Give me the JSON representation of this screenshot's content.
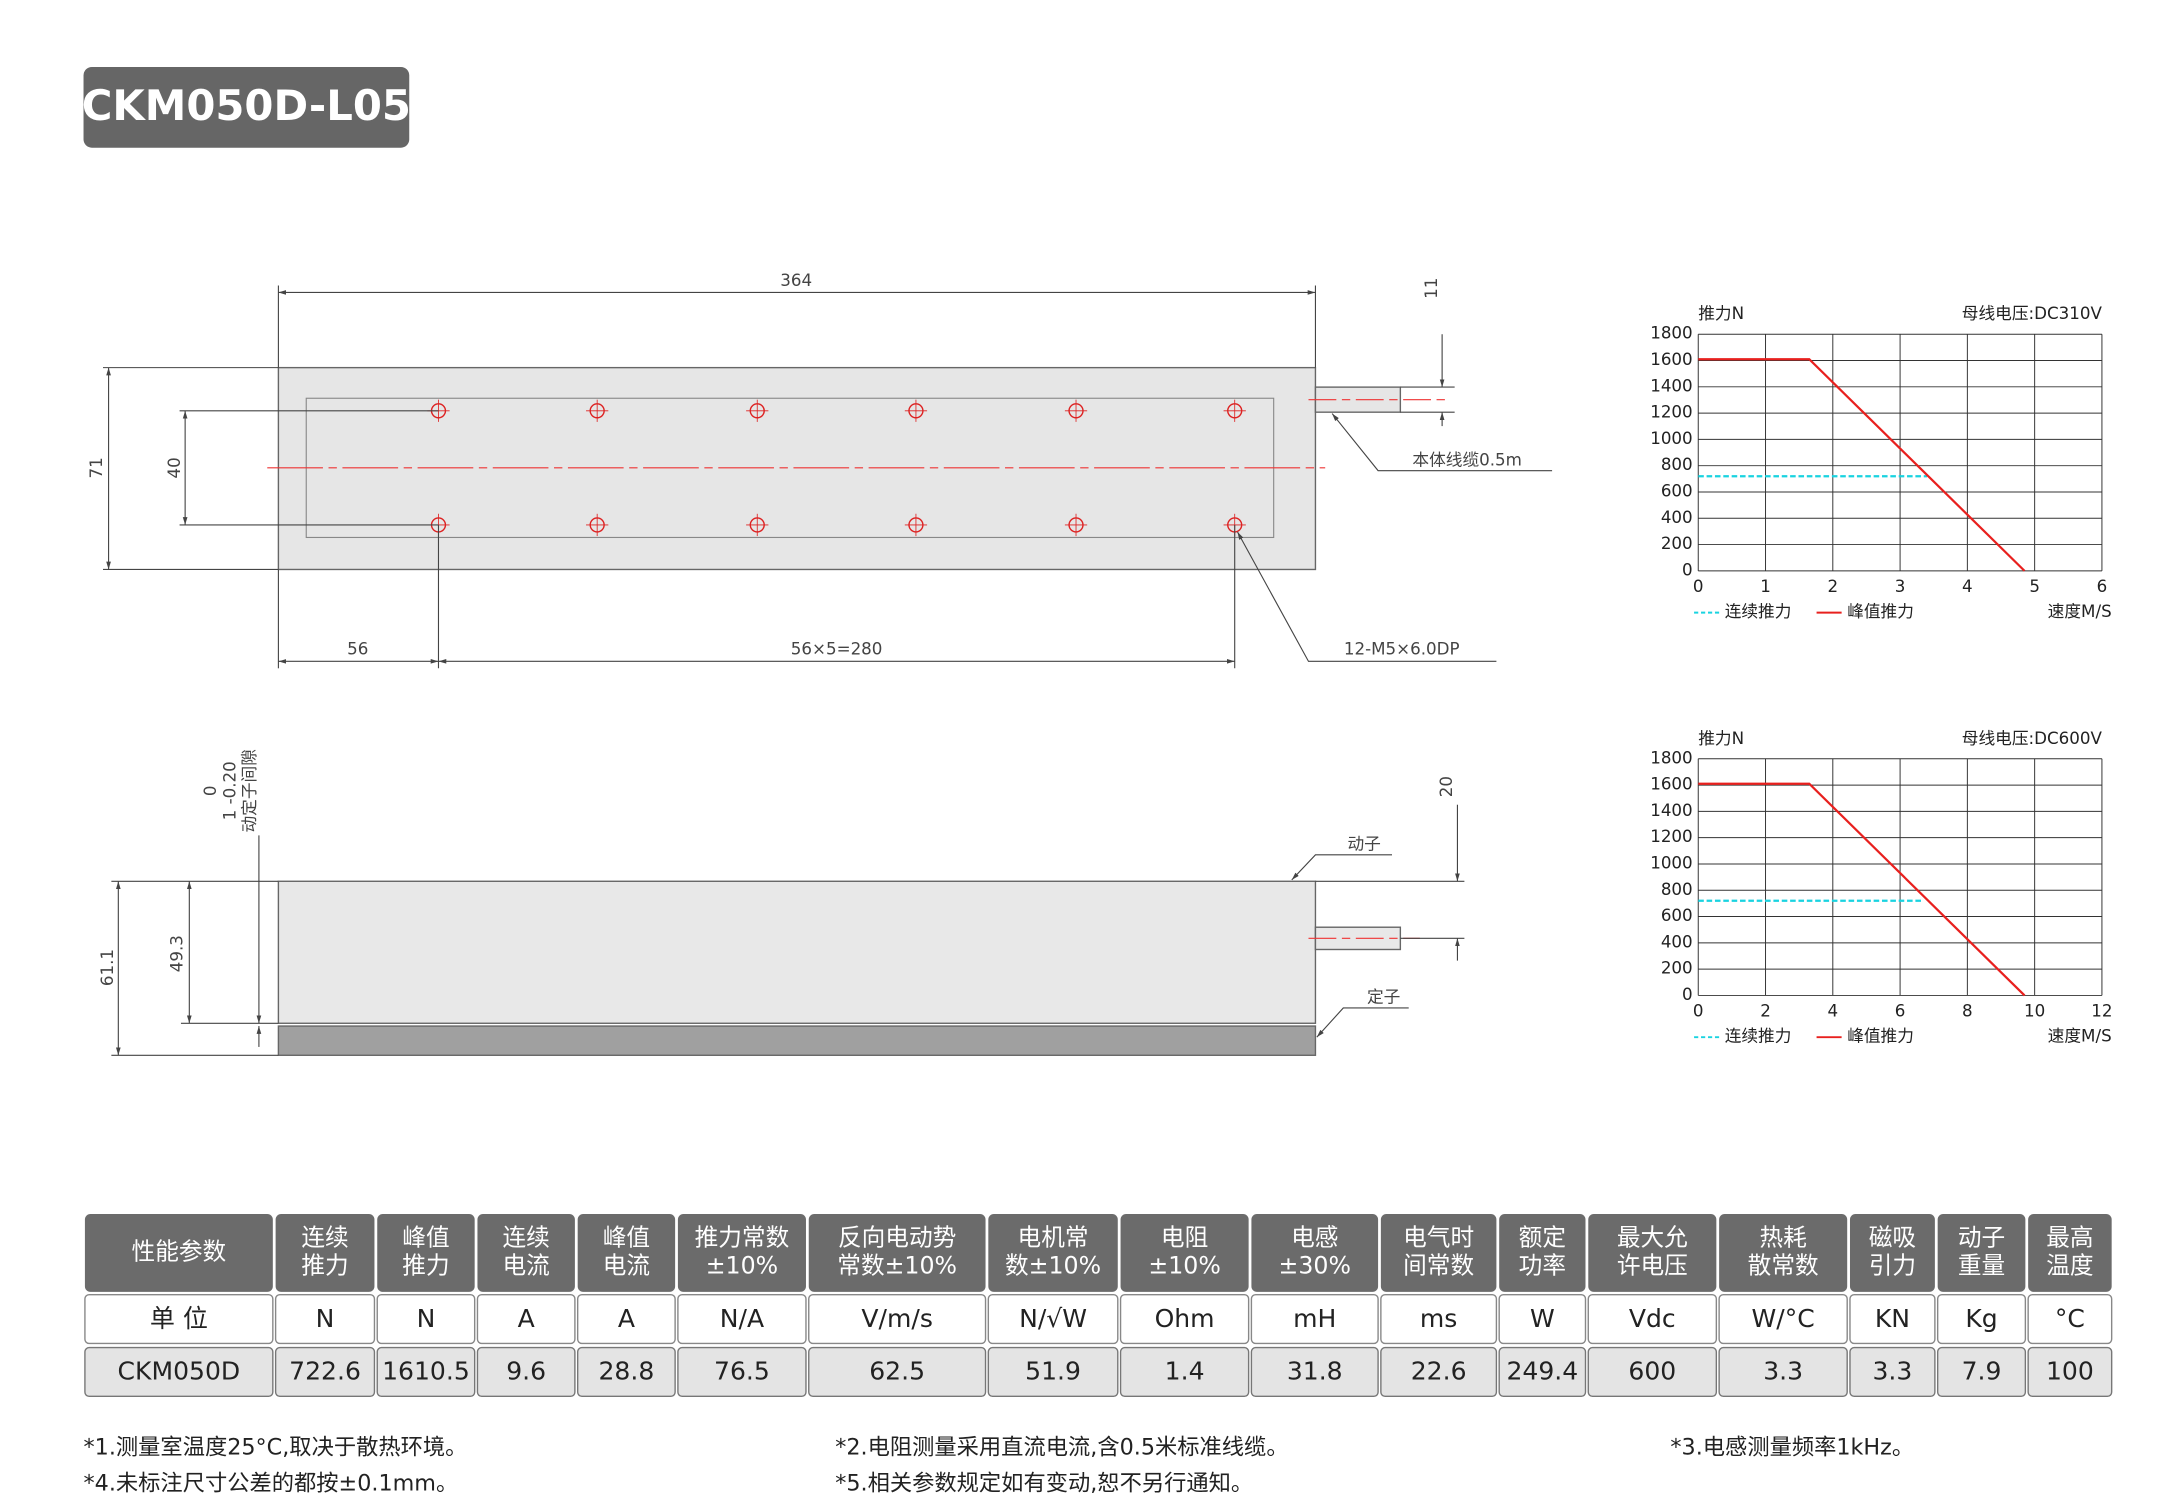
{
  "header": {
    "title": "CKM050D-L05"
  },
  "top_view": {
    "overall_length": "364",
    "cable_offset": "11",
    "height": "71",
    "hole_spacing": "40",
    "first_hole": "56",
    "hole_pitch": "56×5=280",
    "cable_note": "本体线缆0.5m",
    "holes_note": "12-M5×6.0DP"
  },
  "side_view": {
    "gap_lines": [
      "0",
      "1 -0.20",
      "动定子间隙"
    ],
    "total_height": "61.1",
    "mover_height": "49.3",
    "cable_offset": "20",
    "mover_label": "动子",
    "stator_label": "定子"
  },
  "charts": [
    {
      "type": "line",
      "y_label": "推力N",
      "voltage": "母线电压:DC310V",
      "x_label": "速度M/S",
      "xlim": [
        0,
        6
      ],
      "xticks": [
        0,
        1,
        2,
        3,
        4,
        5,
        6
      ],
      "ylim": [
        0,
        1800
      ],
      "yticks": [
        0,
        200,
        400,
        600,
        800,
        1000,
        1200,
        1400,
        1600,
        1800
      ],
      "grid": true,
      "series": [
        {
          "name": "连续推力",
          "color": "#19d3e0",
          "style": "dashed",
          "x": [
            0,
            3.4
          ],
          "values": [
            720,
            720
          ]
        },
        {
          "name": "峰值推力",
          "color": "#e8201e",
          "style": "solid",
          "x": [
            0,
            1.65,
            4.85
          ],
          "values": [
            1610,
            1610,
            0
          ]
        }
      ]
    },
    {
      "type": "line",
      "y_label": "推力N",
      "voltage": "母线电压:DC600V",
      "x_label": "速度M/S",
      "xlim": [
        0,
        12
      ],
      "xticks": [
        0,
        2,
        4,
        6,
        8,
        10,
        12
      ],
      "ylim": [
        0,
        1800
      ],
      "yticks": [
        0,
        200,
        400,
        600,
        800,
        1000,
        1200,
        1400,
        1600,
        1800
      ],
      "grid": true,
      "series": [
        {
          "name": "连续推力",
          "color": "#19d3e0",
          "style": "dashed",
          "x": [
            0,
            6.7
          ],
          "values": [
            720,
            720
          ]
        },
        {
          "name": "峰值推力",
          "color": "#e8201e",
          "style": "solid",
          "x": [
            0,
            3.3,
            9.7
          ],
          "values": [
            1610,
            1610,
            0
          ]
        }
      ]
    }
  ],
  "table": {
    "header": [
      [
        "性能参数"
      ],
      [
        "连续",
        "推力"
      ],
      [
        "峰值",
        "推力"
      ],
      [
        "连续",
        "电流"
      ],
      [
        "峰值",
        "电流"
      ],
      [
        "推力常数",
        "±10%"
      ],
      [
        "反向电动势",
        "常数±10%"
      ],
      [
        "电机常",
        "数±10%"
      ],
      [
        "电阻",
        "±10%"
      ],
      [
        "电感",
        "±30%"
      ],
      [
        "电气时",
        "间常数"
      ],
      [
        "额定",
        "功率"
      ],
      [
        "最大允",
        "许电压"
      ],
      [
        "热耗",
        "散常数"
      ],
      [
        "磁吸",
        "引力"
      ],
      [
        "动子",
        "重量"
      ],
      [
        "最高",
        "温度"
      ]
    ],
    "units": [
      "单 位",
      "N",
      "N",
      "A",
      "A",
      "N/A",
      "V/m/s",
      "N/√W",
      "Ohm",
      "mH",
      "ms",
      "W",
      "Vdc",
      "W/°C",
      "KN",
      "Kg",
      "°C"
    ],
    "rows": [
      [
        "CKM050D",
        "722.6",
        "1610.5",
        "9.6",
        "28.8",
        "76.5",
        "62.5",
        "51.9",
        "1.4",
        "31.8",
        "22.6",
        "249.4",
        "600",
        "3.3",
        "3.3",
        "7.9",
        "100"
      ]
    ]
  },
  "notes": [
    "*1.测量室温度25°C,取决于散热环境。",
    "*2.电阻测量采用直流电流,含0.5米标准线缆。",
    "*3.电感测量频率1kHz。",
    "*4.未标注尺寸公差的都按±0.1mm。",
    "*5.相关参数规定如有变动,恕不另行通知。"
  ]
}
